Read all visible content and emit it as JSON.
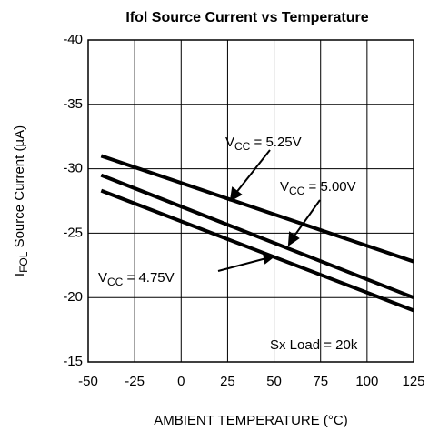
{
  "chart_data": {
    "type": "line",
    "title": "Ifol Source Current vs Temperature",
    "xlabel": "AMBIENT TEMPERATURE (°C)",
    "ylabel": [
      "I",
      "FOL",
      " Source Current (µA)"
    ],
    "annotations": [
      "Sx Load = 20k"
    ],
    "x": [
      -43,
      125
    ],
    "series": [
      {
        "label": [
          "V",
          "CC",
          " = 5.25V"
        ],
        "color": "#000000",
        "values": [
          -31,
          -22.8
        ]
      },
      {
        "label": [
          "V",
          "CC",
          " = 5.00V"
        ],
        "color": "#000000",
        "values": [
          -29.5,
          -20
        ]
      },
      {
        "label": [
          "V",
          "CC",
          " = 4.75V"
        ],
        "color": "#000000",
        "values": [
          -28.3,
          -19
        ]
      }
    ],
    "xlim": [
      -50,
      125
    ],
    "xticks": [
      -50,
      -25,
      0,
      25,
      50,
      75,
      100,
      125
    ],
    "ylim": [
      -15,
      -40
    ],
    "yticks": [
      -40,
      -35,
      -30,
      -25,
      -20,
      -15
    ],
    "grid": true
  }
}
